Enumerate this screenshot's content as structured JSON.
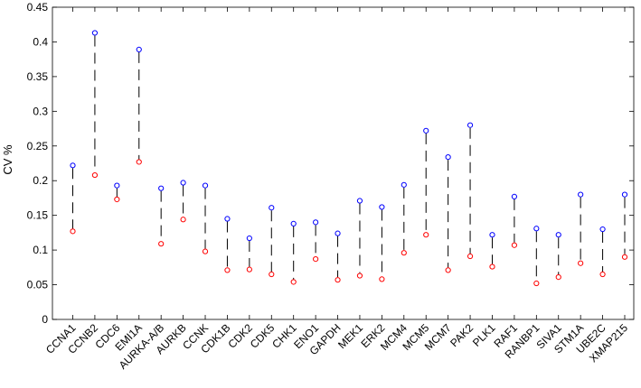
{
  "chart_data": {
    "type": "scatter",
    "title": "",
    "xlabel": "",
    "ylabel": "CV %",
    "ylim": [
      0,
      0.45
    ],
    "yticks": [
      "0",
      "0.05",
      "0.1",
      "0.15",
      "0.2",
      "0.25",
      "0.3",
      "0.35",
      "0.4",
      "0.45"
    ],
    "grid": false,
    "categories": [
      "CCNA1",
      "CCNB2",
      "CDC6",
      "EMI1A",
      "AURKA-A/B",
      "AURKB",
      "CCNK",
      "CDK1B",
      "CDK2",
      "CDK5",
      "CHK1",
      "ENO1",
      "GAPDH",
      "MEK1",
      "ERK2",
      "MCM4",
      "MCM5",
      "MCM7",
      "PAK2",
      "PLK1",
      "RAF1",
      "RANBP1",
      "SIVA1",
      "STM1A",
      "UBE2C",
      "XMAP215"
    ],
    "series": [
      {
        "color": "#0000ff",
        "marker": "circle-open",
        "values": [
          0.222,
          0.413,
          0.193,
          0.389,
          0.189,
          0.197,
          0.193,
          0.145,
          0.117,
          0.161,
          0.138,
          0.14,
          0.124,
          0.171,
          0.162,
          0.194,
          0.272,
          0.234,
          0.28,
          0.122,
          0.177,
          0.131,
          0.122,
          0.18,
          0.13,
          0.18
        ]
      },
      {
        "color": "#ff0000",
        "marker": "circle-open",
        "values": [
          0.127,
          0.208,
          0.173,
          0.227,
          0.109,
          0.144,
          0.098,
          0.071,
          0.072,
          0.065,
          0.054,
          0.087,
          0.057,
          0.063,
          0.058,
          0.096,
          0.122,
          0.071,
          0.091,
          0.076,
          0.107,
          0.052,
          0.061,
          0.081,
          0.065,
          0.09
        ]
      }
    ],
    "connector": {
      "style": "dashed",
      "color": "#000000"
    }
  }
}
